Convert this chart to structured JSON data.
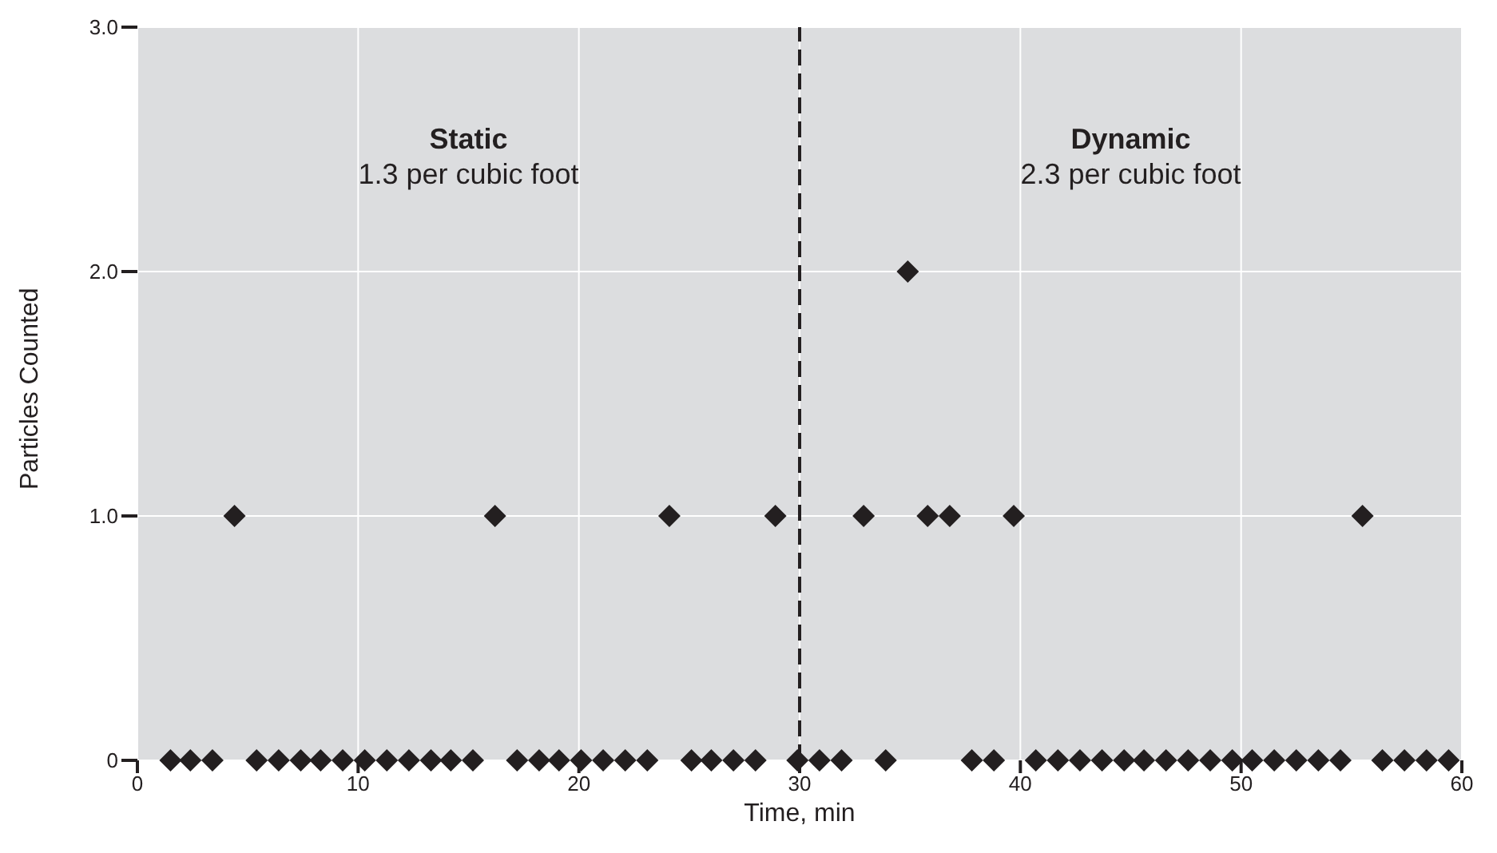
{
  "chart_data": {
    "type": "scatter",
    "xlabel": "Time, min",
    "ylabel": "Particles Counted",
    "annotations": [
      "Static",
      "1.3 per cubic foot",
      "Dynamic",
      "2.3 per cubic foot"
    ],
    "x": [
      1.5,
      2.4,
      3.4,
      4.4,
      5.4,
      6.4,
      7.4,
      8.3,
      9.3,
      10.3,
      11.3,
      12.3,
      13.3,
      14.2,
      15.2,
      16.2,
      17.2,
      18.2,
      19.1,
      20.1,
      21.1,
      22.1,
      23.1,
      24.1,
      25.1,
      26.0,
      27.0,
      28.0,
      28.9,
      29.9,
      30.9,
      31.9,
      32.9,
      33.9,
      34.9,
      35.8,
      36.8,
      37.8,
      38.8,
      39.7,
      40.7,
      41.7,
      42.7,
      43.7,
      44.7,
      45.6,
      46.6,
      47.6,
      48.6,
      49.6,
      50.5,
      51.5,
      52.5,
      53.5,
      54.5,
      55.5,
      56.4,
      57.4,
      58.4,
      59.4
    ],
    "series": [
      {
        "color": "#231f20",
        "values": [
          0,
          0,
          0,
          1,
          0,
          0,
          0,
          0,
          0,
          0,
          0,
          0,
          0,
          0,
          0,
          1,
          0,
          0,
          0,
          0,
          0,
          0,
          0,
          1,
          0,
          0,
          0,
          0,
          1,
          0,
          0,
          0,
          1,
          0,
          2,
          1,
          1,
          0,
          0,
          1,
          0,
          0,
          0,
          0,
          0,
          0,
          0,
          0,
          0,
          0,
          0,
          0,
          0,
          0,
          0,
          1,
          0,
          0,
          0,
          0
        ]
      }
    ],
    "marker": "diamond",
    "xlim": [
      0,
      60
    ],
    "xticks": [
      0,
      10,
      20,
      30,
      40,
      50,
      60
    ],
    "ylim": [
      0,
      3
    ],
    "yticks": [
      0,
      {
        "value": 1,
        "label": "1.0"
      },
      {
        "value": 2,
        "label": "2.0"
      },
      {
        "value": 3,
        "label": "3.0"
      }
    ],
    "grid": true,
    "ref_lines": [
      {
        "axis": "x",
        "value": 30,
        "color": "#231f20",
        "line_style": "dashed"
      }
    ]
  }
}
